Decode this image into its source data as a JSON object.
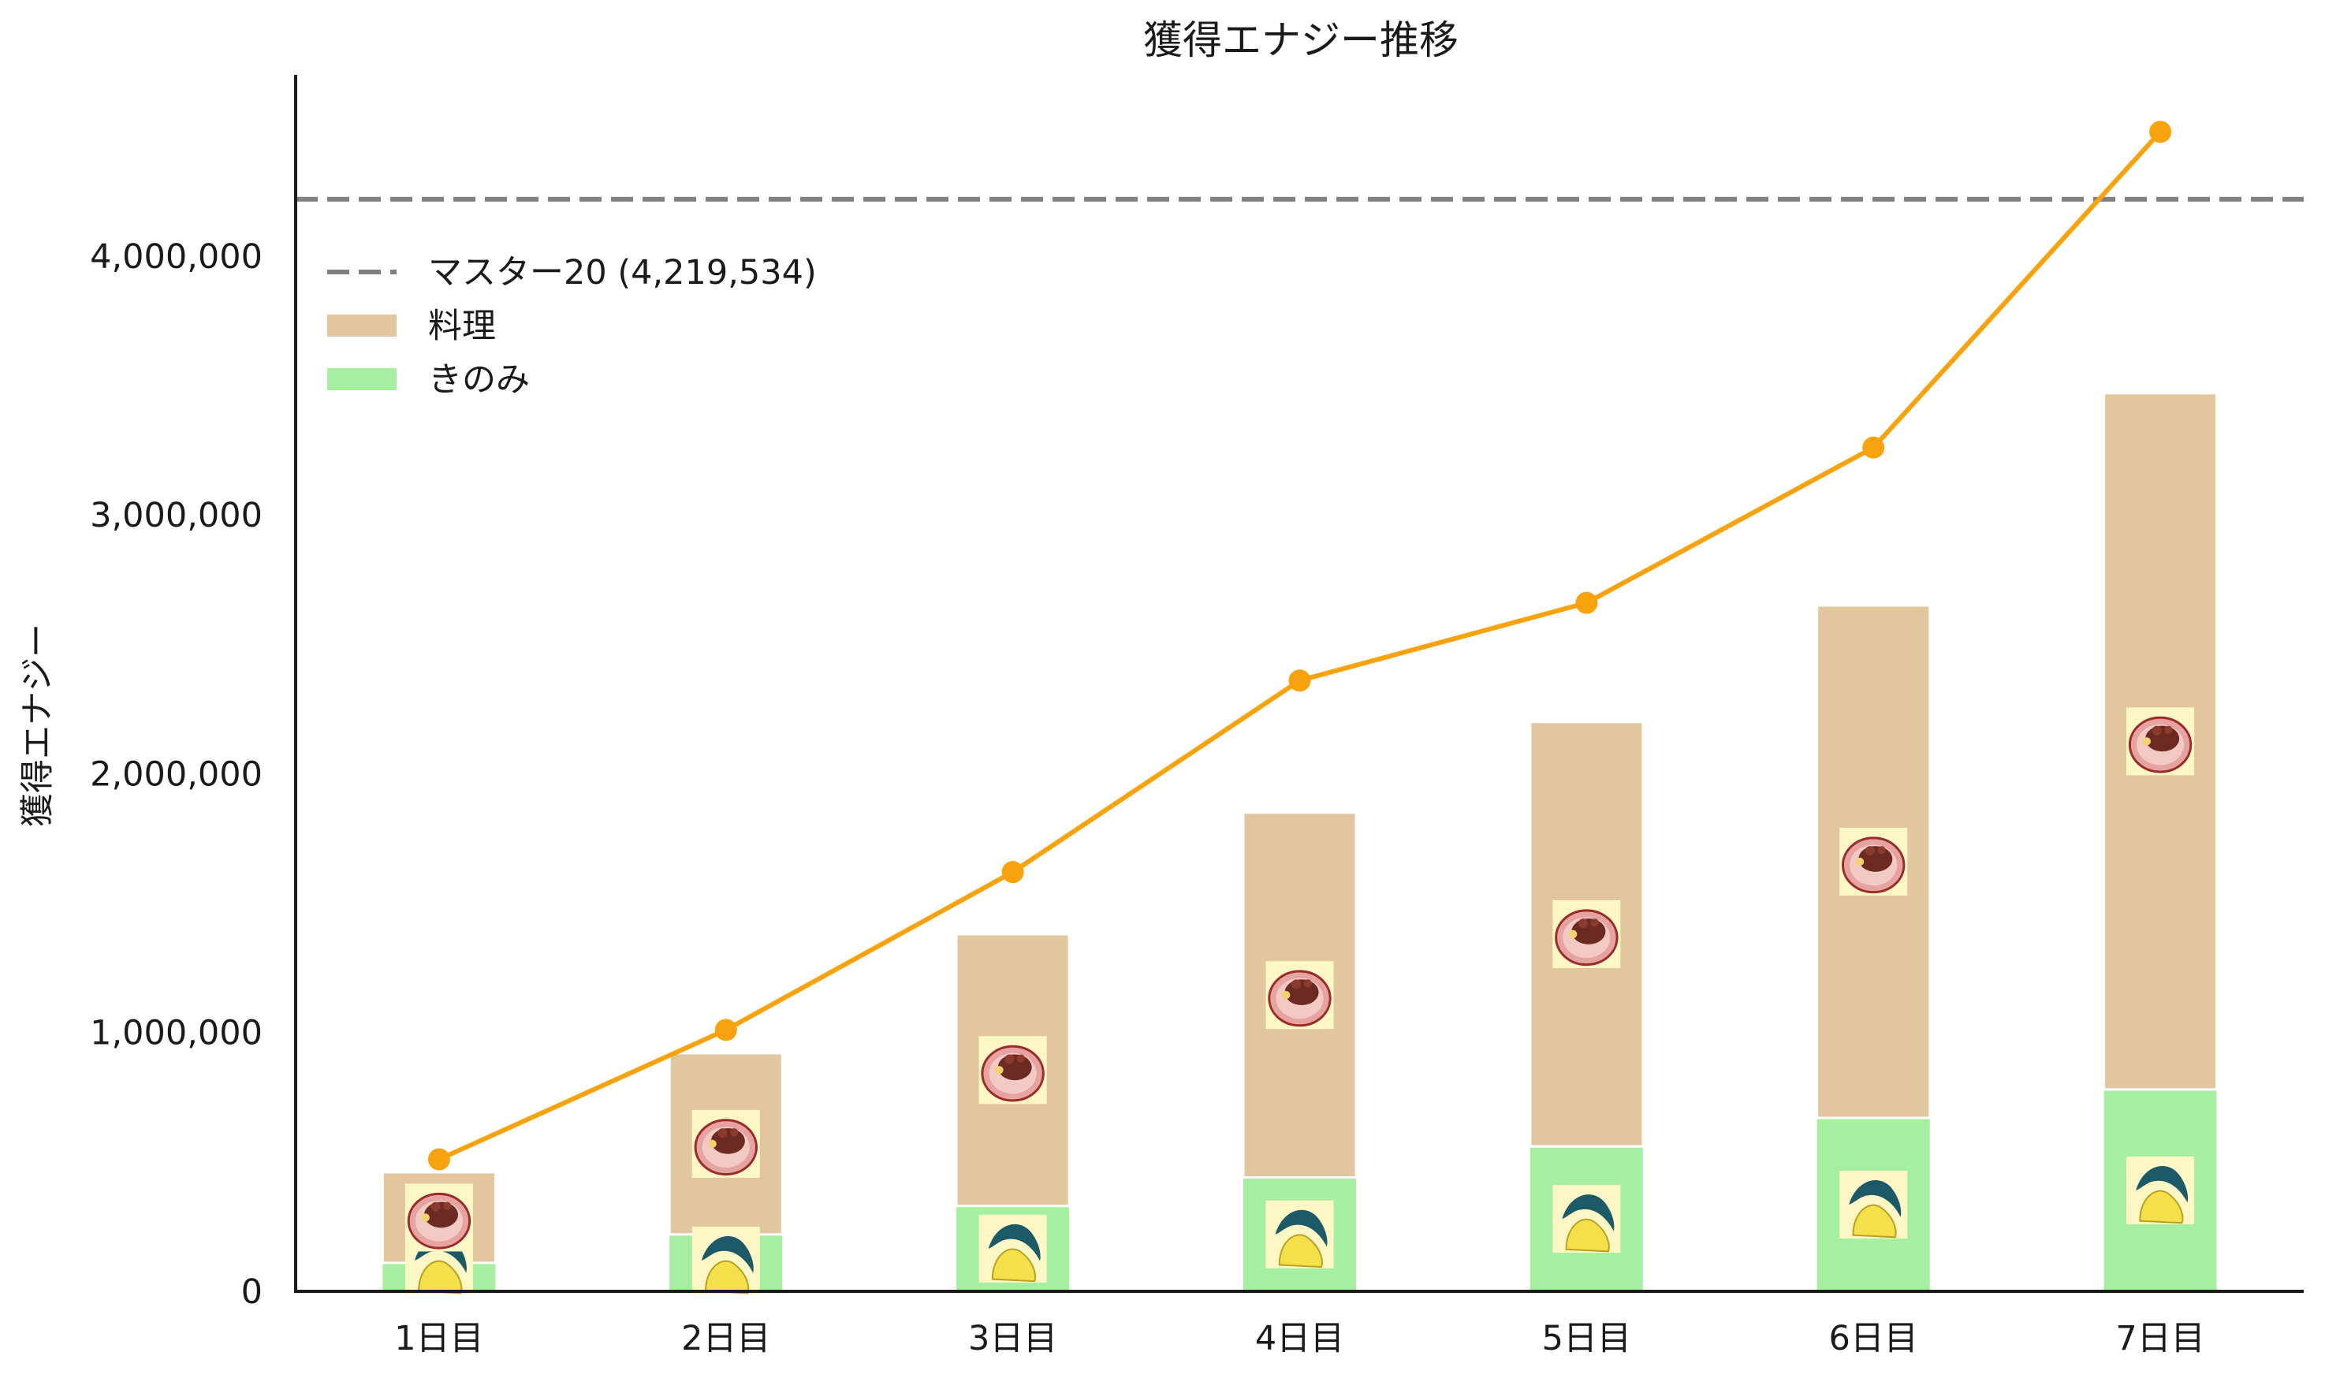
{
  "chart_data": {
    "type": "bar",
    "title": "獲得エナジー推移",
    "xlabel": "",
    "ylabel": "獲得エナジー",
    "categories": [
      "1日目",
      "2日目",
      "3日目",
      "4日目",
      "5日目",
      "6日目",
      "7日目"
    ],
    "ylim": [
      0,
      4700000
    ],
    "yticks": [
      0,
      1000000,
      2000000,
      3000000,
      4000000
    ],
    "ytick_labels": [
      "0",
      "1,000,000",
      "2,000,000",
      "3,000,000",
      "4,000,000"
    ],
    "stacked": true,
    "series": [
      {
        "name": "きのみ",
        "type": "bar",
        "color": "#a6efa0",
        "icon": "berry-icon",
        "values": [
          110000,
          220000,
          330000,
          440000,
          560000,
          670000,
          780000
        ]
      },
      {
        "name": "料理",
        "type": "bar",
        "color": "#e1c69e",
        "icon": "dish-icon",
        "values": [
          350000,
          700000,
          1050000,
          1410000,
          1640000,
          1980000,
          2690000
        ]
      },
      {
        "name": "",
        "type": "line",
        "color": "#f8a30d",
        "values": [
          510000,
          1010000,
          1620000,
          2360000,
          2660000,
          3260000,
          4480000
        ]
      }
    ],
    "reference_line": {
      "label": "マスター20 (4,219,534)",
      "value": 4219534,
      "color": "#808080",
      "style": "dashed"
    },
    "legend": {
      "position": "upper-left",
      "entries": [
        "マスター20 (4,219,534)",
        "料理",
        "きのみ"
      ]
    },
    "grid": false
  }
}
